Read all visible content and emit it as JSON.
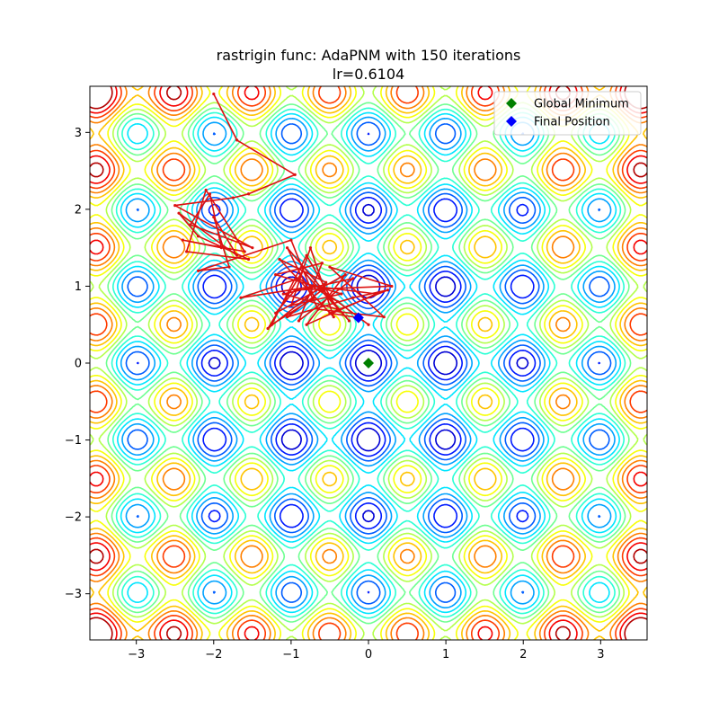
{
  "chart_data": {
    "type": "contour",
    "title_line1": "rastrigin func: AdaPNM with 150 iterations",
    "title_line2": "lr=0.6104",
    "xlabel": "",
    "ylabel": "",
    "xlim": [
      -3.6,
      3.6
    ],
    "ylim": [
      -3.6,
      3.6
    ],
    "xticks": [
      -3,
      -2,
      -1,
      0,
      1,
      2,
      3
    ],
    "yticks": [
      -3,
      -2,
      -1,
      0,
      1,
      2,
      3
    ],
    "xtick_labels": [
      "−3",
      "−2",
      "−1",
      "0",
      "1",
      "2",
      "3"
    ],
    "ytick_labels": [
      "−3",
      "−2",
      "−1",
      "0",
      "1",
      "2",
      "3"
    ],
    "grid": false,
    "legend_position": "top-right",
    "colormap": "jet",
    "path_color": "#dd1111",
    "series": [
      {
        "name": "Global Minimum",
        "marker": "diamond",
        "color": "#008000",
        "points": [
          [
            0,
            0
          ]
        ]
      },
      {
        "name": "Final Position",
        "marker": "diamond",
        "color": "#0000ff",
        "points": [
          [
            -0.13,
            0.59
          ]
        ]
      }
    ],
    "path_points": [
      [
        -2.0,
        3.5
      ],
      [
        -1.7,
        2.9
      ],
      [
        -0.95,
        2.45
      ],
      [
        -1.55,
        2.2
      ],
      [
        -1.75,
        2.15
      ],
      [
        -2.5,
        2.05
      ],
      [
        -1.5,
        1.5
      ],
      [
        -2.3,
        1.8
      ],
      [
        -2.05,
        2.2
      ],
      [
        -1.9,
        1.5
      ],
      [
        -2.4,
        1.6
      ],
      [
        -1.6,
        1.45
      ],
      [
        -2.1,
        2.25
      ],
      [
        -2.35,
        1.45
      ],
      [
        -1.55,
        1.35
      ],
      [
        -2.2,
        1.65
      ],
      [
        -2.45,
        1.95
      ],
      [
        -1.7,
        1.4
      ],
      [
        -2.0,
        1.9
      ],
      [
        -1.8,
        1.25
      ],
      [
        -2.2,
        1.2
      ],
      [
        -1.0,
        1.6
      ],
      [
        -0.7,
        0.85
      ],
      [
        -1.25,
        0.5
      ],
      [
        -0.8,
        1.4
      ],
      [
        -0.4,
        0.7
      ],
      [
        -1.1,
        0.9
      ],
      [
        -0.2,
        1.1
      ],
      [
        -0.9,
        0.55
      ],
      [
        -0.6,
        1.3
      ],
      [
        -1.2,
        1.15
      ],
      [
        -0.35,
        0.9
      ],
      [
        -1.0,
        0.75
      ],
      [
        -0.75,
        1.5
      ],
      [
        -0.45,
        0.6
      ],
      [
        -1.15,
        1.35
      ],
      [
        -0.55,
        1.05
      ],
      [
        -1.3,
        0.45
      ],
      [
        -0.85,
        1.2
      ],
      [
        -0.25,
        0.55
      ],
      [
        -1.05,
        1.5
      ],
      [
        -0.65,
        0.7
      ],
      [
        0.2,
        0.6
      ],
      [
        -0.5,
        1.25
      ],
      [
        0.3,
        1.0
      ],
      [
        -0.95,
        0.95
      ],
      [
        -1.2,
        0.65
      ],
      [
        -0.3,
        1.15
      ],
      [
        -0.8,
        0.5
      ],
      [
        0.1,
        0.9
      ],
      [
        -0.7,
        1.0
      ],
      [
        -1.65,
        0.85
      ],
      [
        -0.9,
        1.1
      ],
      [
        -0.4,
        0.8
      ],
      [
        0.0,
        0.5
      ],
      [
        -0.6,
        0.95
      ],
      [
        -1.05,
        0.6
      ],
      [
        -0.2,
        0.85
      ],
      [
        0.25,
        0.95
      ],
      [
        -0.5,
        0.65
      ],
      [
        -0.13,
        0.59
      ]
    ]
  }
}
